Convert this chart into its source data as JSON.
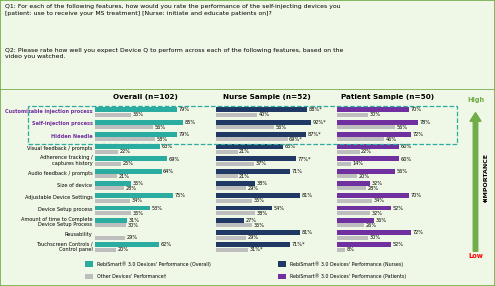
{
  "title_q1": "Q1: For each of the following features, how would you rate the performance of the self-injecting devices you\n[patient: use to receive your MS treatment] [Nurse: initiate and educate patients on]?",
  "title_q2": "Q2: Please rate how well you expect Device Q to perform across each of the following features, based on the\nvideo you watched.",
  "col_headers": [
    "Overall (n=102)",
    "Nurse Sample (n=52)",
    "Patient Sample (n=50)"
  ],
  "categories": [
    "Customizable injection process",
    "Self-injection process",
    "Hidden Needle",
    "Visual feedback / prompts",
    "Adherence tracking /\ncaptures history",
    "Audio feedback / prompts",
    "Size of device",
    "Adjustable Device Settings",
    "Device Setup process",
    "Amount of time to Complete\nDevice Setup Process",
    "Reusability",
    "Touchscreen Controls /\nControl panel"
  ],
  "highlighted": [
    true,
    true,
    true,
    false,
    false,
    false,
    false,
    false,
    false,
    false,
    false,
    false
  ],
  "overall_rebismart": [
    79,
    85,
    79,
    63,
    69,
    64,
    35,
    75,
    53,
    31,
    null,
    62
  ],
  "overall_other": [
    35,
    56,
    58,
    22,
    25,
    21,
    28,
    34,
    35,
    30,
    29,
    20
  ],
  "nurse_rebismart": [
    88,
    92,
    87,
    65,
    77,
    71,
    38,
    81,
    54,
    27,
    81,
    71
  ],
  "nurse_other": [
    40,
    56,
    69,
    21,
    37,
    21,
    29,
    35,
    38,
    35,
    29,
    31
  ],
  "patient_rebismart": [
    70,
    78,
    72,
    60,
    60,
    56,
    32,
    70,
    52,
    36,
    72,
    52
  ],
  "patient_other": [
    30,
    56,
    46,
    22,
    14,
    20,
    28,
    34,
    32,
    26,
    30,
    8
  ],
  "overall_rebismart_labels": [
    "79%",
    "85%",
    "79%",
    "63%",
    "69%",
    "64%",
    "35%",
    "75%",
    "53%",
    "31%",
    "",
    "62%"
  ],
  "overall_other_labels": [
    "35%",
    "56%",
    "58%",
    "22%",
    "25%",
    "21%",
    "28%",
    "34%",
    "35%",
    "30%",
    "29%",
    "20%"
  ],
  "nurse_rebismart_labels": [
    "88%*",
    "92%*",
    "87%*",
    "65%",
    "77%*",
    "71%",
    "38%",
    "81%",
    "54%",
    "27%",
    "81%",
    "71%*"
  ],
  "nurse_other_labels": [
    "40%",
    "56%",
    "69%*",
    "21%",
    "37%",
    "21%",
    "29%",
    "35%",
    "38%",
    "35%",
    "29%",
    "31%*"
  ],
  "patient_rebismart_labels": [
    "70%",
    "78%",
    "72%",
    "60%",
    "60%",
    "56%",
    "32%",
    "70%",
    "52%",
    "36%",
    "72%",
    "52%"
  ],
  "patient_other_labels": [
    "30%",
    "56%",
    "46%",
    "22%",
    "14%",
    "20%",
    "28%",
    "34%",
    "32%",
    "26%",
    "30%",
    "8%"
  ],
  "color_teal": "#2AADA0",
  "color_navy": "#1F3864",
  "color_gray": "#BEBEBE",
  "color_purple": "#7030A0",
  "bg_color": "#EFF7E6",
  "highlight_box_color": "#2AADA0",
  "outer_border_color": "#70AD47",
  "arrow_green": "#70AD47",
  "arrow_red": "#FF0000",
  "legend_items": [
    [
      "#2AADA0",
      "RebiSmart® 3.0 Devices' Performance (Overall)"
    ],
    [
      "#BEBEBE",
      "Other Devices' Performance†"
    ],
    [
      "#1F3864",
      "RebiSmart® 3.0 Devices' Performance (Nurses)"
    ],
    [
      "#7030A0",
      "RebiSmart® 3.0 Devices' Performance (Patients)"
    ]
  ]
}
